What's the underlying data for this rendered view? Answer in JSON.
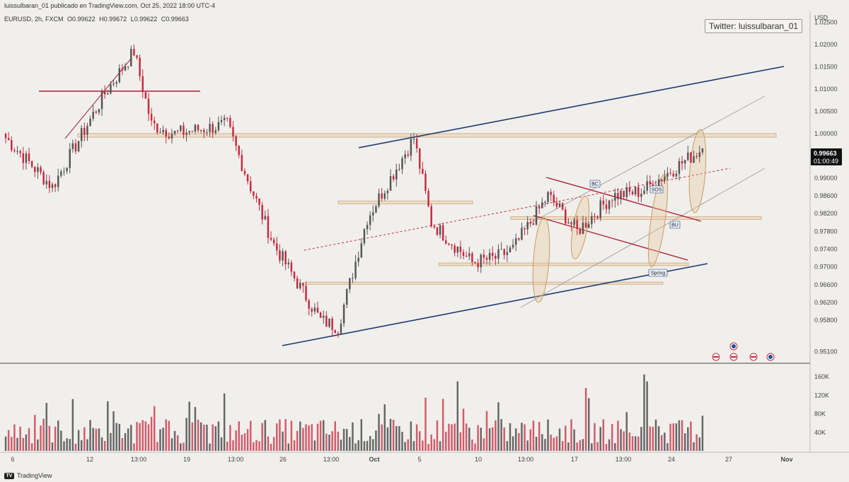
{
  "header": {
    "publisher_line": "luissulbaran_01 publicado en TradingView.com, Oct 25, 2022 18:00 UTC-4"
  },
  "legend": {
    "symbol": "EURUSD, 2h, FXCM",
    "ohlc": [
      {
        "k": "O",
        "v": "0.99622"
      },
      {
        "k": "H",
        "v": "0.99672"
      },
      {
        "k": "L",
        "v": "0.99622"
      },
      {
        "k": "C",
        "v": "0.99663"
      }
    ]
  },
  "watermark": {
    "text": "Twitter: luissulbaran_01"
  },
  "price_axis": {
    "currency": "USD",
    "ticks": [
      "1.02500",
      "1.02000",
      "1.01500",
      "1.01000",
      "1.00500",
      "1.00000",
      "0.99000",
      "0.98600",
      "0.98200",
      "0.97800",
      "0.97400",
      "0.97000",
      "0.96600",
      "0.96200",
      "0.95800",
      "0.95100"
    ]
  },
  "last_price": {
    "price": "0.99663",
    "countdown": "01:00:49"
  },
  "volume_axis": {
    "ticks": [
      "160K",
      "120K",
      "80K",
      "40K"
    ]
  },
  "time_axis": {
    "ticks": [
      "6",
      "12",
      "13:00",
      "19",
      "13:00",
      "26",
      "13:00",
      "Oct",
      "5",
      "10",
      "13:00",
      "17",
      "13:00",
      "24",
      "27",
      "Nov"
    ]
  },
  "annotations": {
    "bc": "BC",
    "sos": "SOS",
    "bu": "BU",
    "spring": "Spring"
  },
  "footer": {
    "brand": "TradingView"
  },
  "colors": {
    "up": "#555555",
    "down": "#c8283c",
    "trend_blue": "#1f3a6e",
    "accent_red": "#b01e36",
    "zone": "#e8c9a0"
  },
  "chart_data": {
    "type": "candlestick",
    "symbol": "EURUSD",
    "timeframe": "2h",
    "broker": "FXCM",
    "ylim": [
      0.9485,
      1.0275
    ],
    "last_ohlc": {
      "open": 0.99622,
      "high": 0.99672,
      "low": 0.99622,
      "close": 0.99663
    },
    "anchor_closes": [
      {
        "x": "Sep 6",
        "close": 0.999
      },
      {
        "x": "Sep 8",
        "close": 0.988
      },
      {
        "x": "Sep 11",
        "close": 1.009
      },
      {
        "x": "Sep 12",
        "close": 1.0185
      },
      {
        "x": "Sep 13",
        "close": 1.002
      },
      {
        "x": "Sep 15",
        "close": 1.0
      },
      {
        "x": "Sep 19",
        "close": 1.002
      },
      {
        "x": "Sep 21",
        "close": 0.988
      },
      {
        "x": "Sep 23",
        "close": 0.975
      },
      {
        "x": "Sep 26",
        "close": 0.958
      },
      {
        "x": "Sep 28",
        "close": 0.9565
      },
      {
        "x": "Sep 29",
        "close": 0.981
      },
      {
        "x": "Oct 4",
        "close": 0.999
      },
      {
        "x": "Oct 6",
        "close": 0.98
      },
      {
        "x": "Oct 10",
        "close": 0.971
      },
      {
        "x": "Oct 13",
        "close": 0.972
      },
      {
        "x": "Oct 14",
        "close": 0.974
      },
      {
        "x": "Oct 17",
        "close": 0.986
      },
      {
        "x": "Oct 18",
        "close": 0.983
      },
      {
        "x": "Oct 20",
        "close": 0.978
      },
      {
        "x": "Oct 21",
        "close": 0.986
      },
      {
        "x": "Oct 24",
        "close": 0.987
      },
      {
        "x": "Oct 25",
        "close": 0.99663
      }
    ],
    "volume": {
      "unit": "lots",
      "ylim": [
        0,
        180000
      ]
    }
  }
}
